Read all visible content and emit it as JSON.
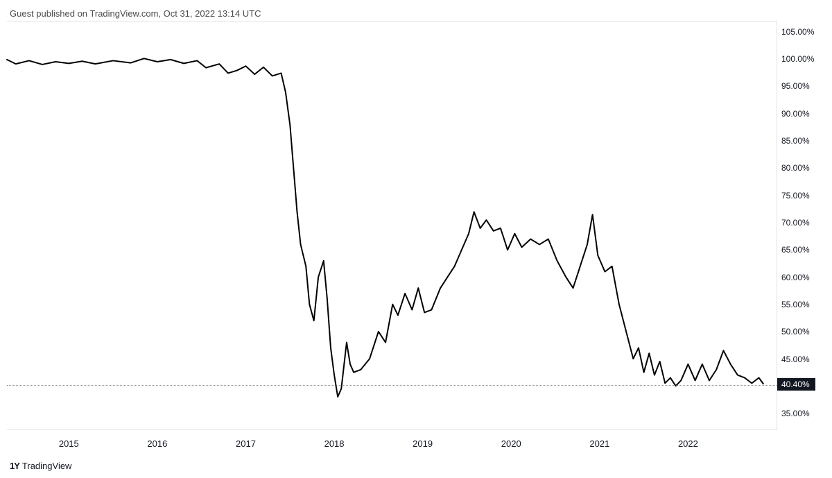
{
  "header": {
    "publish_text": "Guest published on TradingView.com, Oct 31, 2022 13:14 UTC"
  },
  "footer": {
    "brand": "TradingView",
    "logo_glyph": "1Y"
  },
  "chart": {
    "type": "line",
    "background_color": "#ffffff",
    "border_color": "#e0e3eb",
    "line_color": "#000000",
    "line_width": 2,
    "ref_line_color": "#5d606b",
    "marker_bg": "#131722",
    "marker_fg": "#ffffff",
    "current_value": 40.4,
    "current_label": "40.40%",
    "y_axis": {
      "min": 32,
      "max": 107,
      "ticks": [
        35,
        40,
        45,
        50,
        55,
        60,
        65,
        70,
        75,
        80,
        85,
        90,
        95,
        100,
        105
      ],
      "tick_labels": [
        "35.00%",
        "40.00%",
        "45.00%",
        "50.00%",
        "55.00%",
        "60.00%",
        "65.00%",
        "70.00%",
        "75.00%",
        "80.00%",
        "85.00%",
        "90.00%",
        "95.00%",
        "100.00%",
        "105.00%"
      ],
      "fontsize": 12,
      "text_color": "#131722"
    },
    "x_axis": {
      "min": 2014.3,
      "max": 2023.0,
      "ticks": [
        2015,
        2016,
        2017,
        2018,
        2019,
        2020,
        2021,
        2022
      ],
      "tick_labels": [
        "2015",
        "2016",
        "2017",
        "2018",
        "2019",
        "2020",
        "2021",
        "2022"
      ],
      "fontsize": 13,
      "text_color": "#131722"
    },
    "series": [
      {
        "x": 2014.3,
        "y": 100.0
      },
      {
        "x": 2014.4,
        "y": 99.2
      },
      {
        "x": 2014.55,
        "y": 99.8
      },
      {
        "x": 2014.7,
        "y": 99.1
      },
      {
        "x": 2014.85,
        "y": 99.6
      },
      {
        "x": 2015.0,
        "y": 99.3
      },
      {
        "x": 2015.15,
        "y": 99.7
      },
      {
        "x": 2015.3,
        "y": 99.2
      },
      {
        "x": 2015.5,
        "y": 99.8
      },
      {
        "x": 2015.7,
        "y": 99.4
      },
      {
        "x": 2015.85,
        "y": 100.2
      },
      {
        "x": 2016.0,
        "y": 99.6
      },
      {
        "x": 2016.15,
        "y": 100.0
      },
      {
        "x": 2016.3,
        "y": 99.3
      },
      {
        "x": 2016.45,
        "y": 99.8
      },
      {
        "x": 2016.55,
        "y": 98.5
      },
      {
        "x": 2016.7,
        "y": 99.2
      },
      {
        "x": 2016.8,
        "y": 97.5
      },
      {
        "x": 2016.9,
        "y": 98.0
      },
      {
        "x": 2017.0,
        "y": 98.8
      },
      {
        "x": 2017.1,
        "y": 97.3
      },
      {
        "x": 2017.2,
        "y": 98.6
      },
      {
        "x": 2017.3,
        "y": 97.0
      },
      {
        "x": 2017.4,
        "y": 97.5
      },
      {
        "x": 2017.45,
        "y": 94.0
      },
      {
        "x": 2017.5,
        "y": 88.0
      },
      {
        "x": 2017.55,
        "y": 78.0
      },
      {
        "x": 2017.58,
        "y": 72.0
      },
      {
        "x": 2017.62,
        "y": 66.0
      },
      {
        "x": 2017.68,
        "y": 62.0
      },
      {
        "x": 2017.72,
        "y": 55.0
      },
      {
        "x": 2017.77,
        "y": 52.0
      },
      {
        "x": 2017.82,
        "y": 60.0
      },
      {
        "x": 2017.88,
        "y": 63.0
      },
      {
        "x": 2017.92,
        "y": 56.0
      },
      {
        "x": 2017.96,
        "y": 47.0
      },
      {
        "x": 2018.0,
        "y": 42.0
      },
      {
        "x": 2018.04,
        "y": 38.0
      },
      {
        "x": 2018.08,
        "y": 39.5
      },
      {
        "x": 2018.14,
        "y": 48.0
      },
      {
        "x": 2018.18,
        "y": 44.0
      },
      {
        "x": 2018.22,
        "y": 42.5
      },
      {
        "x": 2018.3,
        "y": 43.0
      },
      {
        "x": 2018.4,
        "y": 45.0
      },
      {
        "x": 2018.5,
        "y": 50.0
      },
      {
        "x": 2018.58,
        "y": 48.0
      },
      {
        "x": 2018.66,
        "y": 55.0
      },
      {
        "x": 2018.72,
        "y": 53.0
      },
      {
        "x": 2018.8,
        "y": 57.0
      },
      {
        "x": 2018.88,
        "y": 54.0
      },
      {
        "x": 2018.95,
        "y": 58.0
      },
      {
        "x": 2019.02,
        "y": 53.5
      },
      {
        "x": 2019.1,
        "y": 54.0
      },
      {
        "x": 2019.2,
        "y": 58.0
      },
      {
        "x": 2019.28,
        "y": 60.0
      },
      {
        "x": 2019.36,
        "y": 62.0
      },
      {
        "x": 2019.44,
        "y": 65.0
      },
      {
        "x": 2019.52,
        "y": 68.0
      },
      {
        "x": 2019.58,
        "y": 72.0
      },
      {
        "x": 2019.65,
        "y": 69.0
      },
      {
        "x": 2019.72,
        "y": 70.5
      },
      {
        "x": 2019.8,
        "y": 68.5
      },
      {
        "x": 2019.88,
        "y": 69.0
      },
      {
        "x": 2019.96,
        "y": 65.0
      },
      {
        "x": 2020.04,
        "y": 68.0
      },
      {
        "x": 2020.12,
        "y": 65.5
      },
      {
        "x": 2020.22,
        "y": 67.0
      },
      {
        "x": 2020.32,
        "y": 66.0
      },
      {
        "x": 2020.42,
        "y": 67.0
      },
      {
        "x": 2020.52,
        "y": 63.0
      },
      {
        "x": 2020.62,
        "y": 60.0
      },
      {
        "x": 2020.7,
        "y": 58.0
      },
      {
        "x": 2020.78,
        "y": 62.0
      },
      {
        "x": 2020.86,
        "y": 66.0
      },
      {
        "x": 2020.92,
        "y": 71.5
      },
      {
        "x": 2020.98,
        "y": 64.0
      },
      {
        "x": 2021.06,
        "y": 61.0
      },
      {
        "x": 2021.14,
        "y": 62.0
      },
      {
        "x": 2021.22,
        "y": 55.0
      },
      {
        "x": 2021.3,
        "y": 50.0
      },
      {
        "x": 2021.38,
        "y": 45.0
      },
      {
        "x": 2021.44,
        "y": 47.0
      },
      {
        "x": 2021.5,
        "y": 42.5
      },
      {
        "x": 2021.56,
        "y": 46.0
      },
      {
        "x": 2021.62,
        "y": 42.0
      },
      {
        "x": 2021.68,
        "y": 44.5
      },
      {
        "x": 2021.74,
        "y": 40.5
      },
      {
        "x": 2021.8,
        "y": 41.5
      },
      {
        "x": 2021.86,
        "y": 40.0
      },
      {
        "x": 2021.92,
        "y": 41.0
      },
      {
        "x": 2022.0,
        "y": 44.0
      },
      {
        "x": 2022.08,
        "y": 41.0
      },
      {
        "x": 2022.16,
        "y": 44.0
      },
      {
        "x": 2022.24,
        "y": 41.0
      },
      {
        "x": 2022.32,
        "y": 43.0
      },
      {
        "x": 2022.4,
        "y": 46.5
      },
      {
        "x": 2022.48,
        "y": 44.0
      },
      {
        "x": 2022.56,
        "y": 42.0
      },
      {
        "x": 2022.64,
        "y": 41.5
      },
      {
        "x": 2022.72,
        "y": 40.5
      },
      {
        "x": 2022.8,
        "y": 41.5
      },
      {
        "x": 2022.85,
        "y": 40.4
      }
    ]
  }
}
